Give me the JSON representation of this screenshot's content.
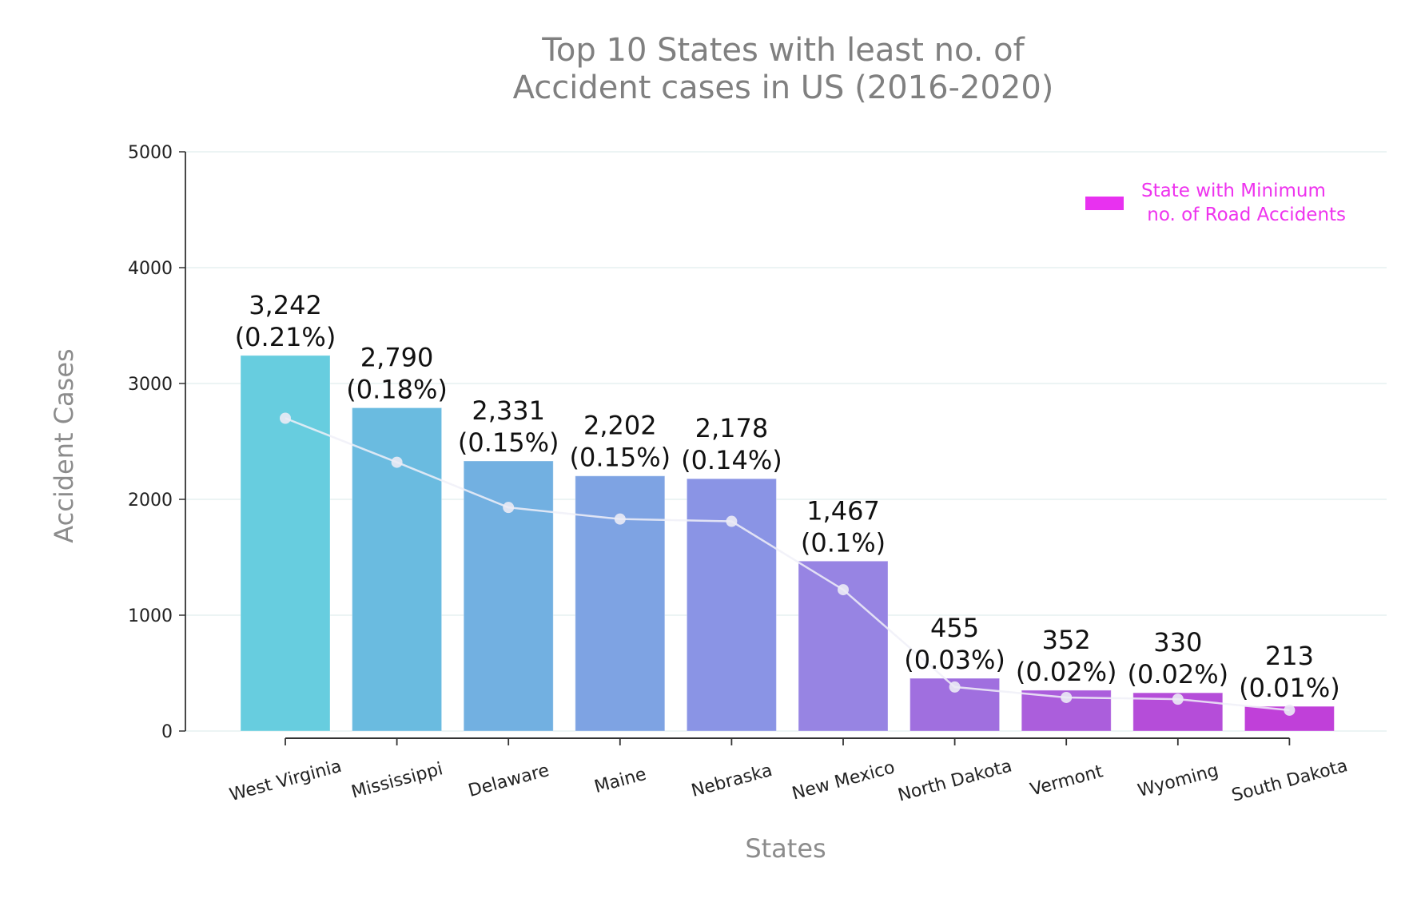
{
  "chart_data": {
    "type": "bar",
    "title": "Top 10 States with least no. of\nAccident cases in US (2016-2020)",
    "title_lines": [
      "Top 10 States with least no. of",
      "Accident cases in US (2016-2020)"
    ],
    "xlabel": "States",
    "ylabel": "Accident Cases",
    "ylim": [
      0,
      5000
    ],
    "yticks": [
      0,
      1000,
      2000,
      3000,
      4000,
      5000
    ],
    "grid": "horizontal",
    "legend_position": "upper right",
    "categories": [
      "West Virginia",
      "Mississippi",
      "Delaware",
      "Maine",
      "Nebraska",
      "New Mexico",
      "North Dakota",
      "Vermont",
      "Wyoming",
      "South Dakota"
    ],
    "values": [
      3242,
      2790,
      2331,
      2202,
      2178,
      1467,
      455,
      352,
      330,
      213
    ],
    "value_labels": [
      "3,242",
      "2,790",
      "2,331",
      "2,202",
      "2,178",
      "1,467",
      "455",
      "352",
      "330",
      "213"
    ],
    "percent_labels": [
      "(0.21%)",
      "(0.18%)",
      "(0.15%)",
      "(0.15%)",
      "(0.14%)",
      "(0.1%)",
      "(0.03%)",
      "(0.02%)",
      "(0.02%)",
      "(0.01%)"
    ],
    "bar_colors": [
      "#67cddf",
      "#6abbe0",
      "#72b0e1",
      "#7ea3e3",
      "#8a94e5",
      "#9784e3",
      "#a06fdf",
      "#ab5edc",
      "#b54dd9",
      "#c040d9"
    ],
    "series": [
      {
        "name": "Accident Cases",
        "type": "bar",
        "values": [
          3242,
          2790,
          2331,
          2202,
          2178,
          1467,
          455,
          352,
          330,
          213
        ]
      },
      {
        "name": "trend line",
        "type": "line",
        "color": "#f0f0f8",
        "values": [
          2700,
          2320,
          1930,
          1830,
          1810,
          1220,
          380,
          290,
          275,
          180
        ]
      }
    ],
    "legend": [
      {
        "label": "State with Minimum\n no. of Road Accidents",
        "color": "#e831f0"
      }
    ]
  },
  "legend": {
    "text": "State with Minimum\n no. of Road Accidents"
  }
}
